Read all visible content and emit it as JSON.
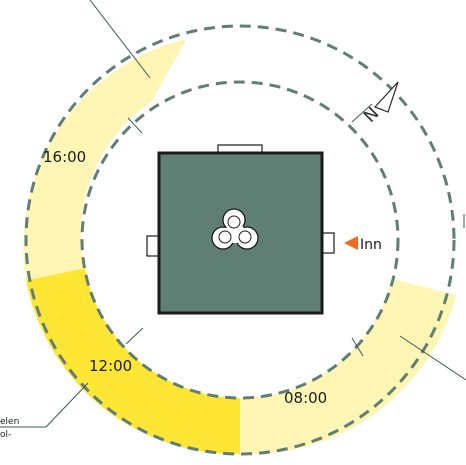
{
  "labels": {
    "t1600": "16:00",
    "t1200": "12:00",
    "t0800": "08:00",
    "entrance": "Inn",
    "north": "N",
    "note_line1": "elen",
    "note_line2": "ol-"
  },
  "colors": {
    "pale_sun": "#FFF6B5",
    "strong_sun": "#FFE534",
    "building": "#5F7F75",
    "dash": "#5F7F75",
    "entrance_arrow": "#EE6A1F",
    "outline": "#1a1a1a"
  },
  "icons": {
    "north_marker": "compass-arrow-icon",
    "entrance_marker": "triangle-left-icon",
    "sculpture": "trefoil-sculpture-icon"
  }
}
